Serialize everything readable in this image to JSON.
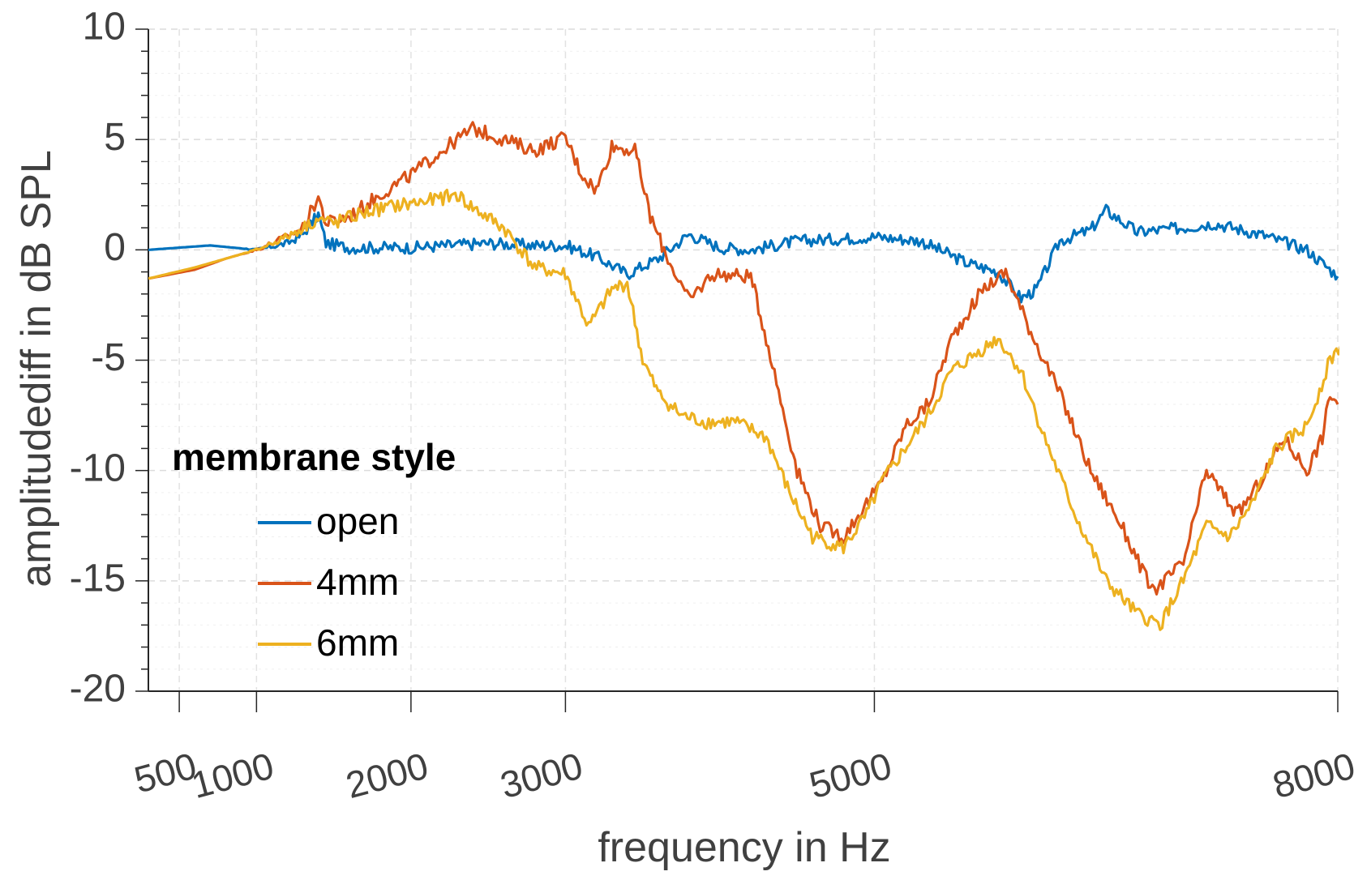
{
  "chart_data": {
    "type": "line",
    "title": "",
    "xlabel": "frequency in Hz",
    "ylabel": "amplitudediff in dB SPL",
    "x_ticks": [
      500,
      1000,
      2000,
      3000,
      5000,
      8000
    ],
    "x_tick_labels": [
      "500",
      "1000",
      "2000",
      "3000",
      "5000",
      "8000"
    ],
    "y_ticks": [
      10,
      5,
      0,
      -5,
      -10,
      -15,
      -20
    ],
    "y_tick_labels": [
      "10",
      "5",
      "0",
      "-5",
      "-10",
      "-15",
      "-20"
    ],
    "xlim": [
      300,
      8000
    ],
    "ylim": [
      -20,
      10
    ],
    "grid": true,
    "legend": {
      "title": "membrane style",
      "position": "left"
    },
    "series": [
      {
        "name": "open",
        "color": "#0072BD",
        "points": [
          [
            300,
            0.0
          ],
          [
            500,
            0.1
          ],
          [
            700,
            0.2
          ],
          [
            1000,
            0.0
          ],
          [
            1200,
            0.3
          ],
          [
            1300,
            0.7
          ],
          [
            1400,
            1.6
          ],
          [
            1450,
            0.3
          ],
          [
            1600,
            0.1
          ],
          [
            2000,
            0.1
          ],
          [
            2500,
            0.3
          ],
          [
            2800,
            0.2
          ],
          [
            3000,
            0.2
          ],
          [
            3200,
            -0.3
          ],
          [
            3400,
            -1.1
          ],
          [
            3600,
            -0.4
          ],
          [
            3800,
            0.7
          ],
          [
            4000,
            0.1
          ],
          [
            4200,
            0.0
          ],
          [
            4500,
            0.4
          ],
          [
            4800,
            0.5
          ],
          [
            5000,
            0.6
          ],
          [
            5300,
            0.4
          ],
          [
            5600,
            -0.6
          ],
          [
            5800,
            -1.0
          ],
          [
            5950,
            -2.2
          ],
          [
            6050,
            -1.8
          ],
          [
            6200,
            0.4
          ],
          [
            6400,
            0.9
          ],
          [
            6500,
            1.8
          ],
          [
            6700,
            0.8
          ],
          [
            7000,
            1.0
          ],
          [
            7200,
            1.2
          ],
          [
            7500,
            0.7
          ],
          [
            7800,
            0.0
          ],
          [
            8000,
            -1.2
          ]
        ]
      },
      {
        "name": "4mm",
        "color": "#D95319",
        "points": [
          [
            300,
            -1.3
          ],
          [
            600,
            -0.9
          ],
          [
            800,
            -0.4
          ],
          [
            1000,
            0.0
          ],
          [
            1200,
            0.6
          ],
          [
            1300,
            1.0
          ],
          [
            1400,
            2.4
          ],
          [
            1450,
            1.2
          ],
          [
            1600,
            1.5
          ],
          [
            1800,
            2.5
          ],
          [
            2000,
            3.4
          ],
          [
            2200,
            4.5
          ],
          [
            2400,
            5.5
          ],
          [
            2600,
            5.0
          ],
          [
            2800,
            4.5
          ],
          [
            3000,
            5.1
          ],
          [
            3100,
            3.5
          ],
          [
            3200,
            2.7
          ],
          [
            3300,
            4.7
          ],
          [
            3450,
            4.5
          ],
          [
            3550,
            1.5
          ],
          [
            3650,
            -0.2
          ],
          [
            3800,
            -2.3
          ],
          [
            3950,
            -1.1
          ],
          [
            4200,
            -1.2
          ],
          [
            4300,
            -4.0
          ],
          [
            4500,
            -10.0
          ],
          [
            4650,
            -12.5
          ],
          [
            4800,
            -13.0
          ],
          [
            4950,
            -11.5
          ],
          [
            5050,
            -10.5
          ],
          [
            5200,
            -8.0
          ],
          [
            5350,
            -7.0
          ],
          [
            5500,
            -4.0
          ],
          [
            5700,
            -1.8
          ],
          [
            5850,
            -1.0
          ],
          [
            6000,
            -3.5
          ],
          [
            6200,
            -6.5
          ],
          [
            6400,
            -10.0
          ],
          [
            6600,
            -12.5
          ],
          [
            6800,
            -15.5
          ],
          [
            7000,
            -14.2
          ],
          [
            7150,
            -10.0
          ],
          [
            7250,
            -11.0
          ],
          [
            7350,
            -12.0
          ],
          [
            7500,
            -10.5
          ],
          [
            7650,
            -8.5
          ],
          [
            7800,
            -10.0
          ],
          [
            7900,
            -8.5
          ],
          [
            7950,
            -6.5
          ],
          [
            8000,
            -7.0
          ]
        ]
      },
      {
        "name": "6mm",
        "color": "#EDB120",
        "points": [
          [
            300,
            -1.3
          ],
          [
            600,
            -0.8
          ],
          [
            800,
            -0.4
          ],
          [
            1000,
            0.0
          ],
          [
            1200,
            0.6
          ],
          [
            1300,
            1.0
          ],
          [
            1400,
            1.4
          ],
          [
            1500,
            1.2
          ],
          [
            1700,
            1.7
          ],
          [
            1900,
            2.0
          ],
          [
            2100,
            2.2
          ],
          [
            2300,
            2.5
          ],
          [
            2400,
            1.9
          ],
          [
            2600,
            1.0
          ],
          [
            2800,
            -0.8
          ],
          [
            3000,
            -1.1
          ],
          [
            3150,
            -3.5
          ],
          [
            3300,
            -1.8
          ],
          [
            3400,
            -1.5
          ],
          [
            3500,
            -5.0
          ],
          [
            3600,
            -6.5
          ],
          [
            3750,
            -7.5
          ],
          [
            3900,
            -7.8
          ],
          [
            4100,
            -7.8
          ],
          [
            4300,
            -8.5
          ],
          [
            4450,
            -11.0
          ],
          [
            4600,
            -13.0
          ],
          [
            4800,
            -13.5
          ],
          [
            4950,
            -12.0
          ],
          [
            5050,
            -10.5
          ],
          [
            5200,
            -9.0
          ],
          [
            5350,
            -7.5
          ],
          [
            5500,
            -5.5
          ],
          [
            5700,
            -4.5
          ],
          [
            5800,
            -4.0
          ],
          [
            5950,
            -5.5
          ],
          [
            6100,
            -8.5
          ],
          [
            6300,
            -12.0
          ],
          [
            6500,
            -15.0
          ],
          [
            6700,
            -16.5
          ],
          [
            6850,
            -17.0
          ],
          [
            7000,
            -15.0
          ],
          [
            7150,
            -12.5
          ],
          [
            7300,
            -13.0
          ],
          [
            7450,
            -11.5
          ],
          [
            7600,
            -9.0
          ],
          [
            7800,
            -8.0
          ],
          [
            7950,
            -5.0
          ],
          [
            8100,
            -3.5
          ],
          [
            8200,
            -3.0
          ]
        ]
      }
    ]
  }
}
